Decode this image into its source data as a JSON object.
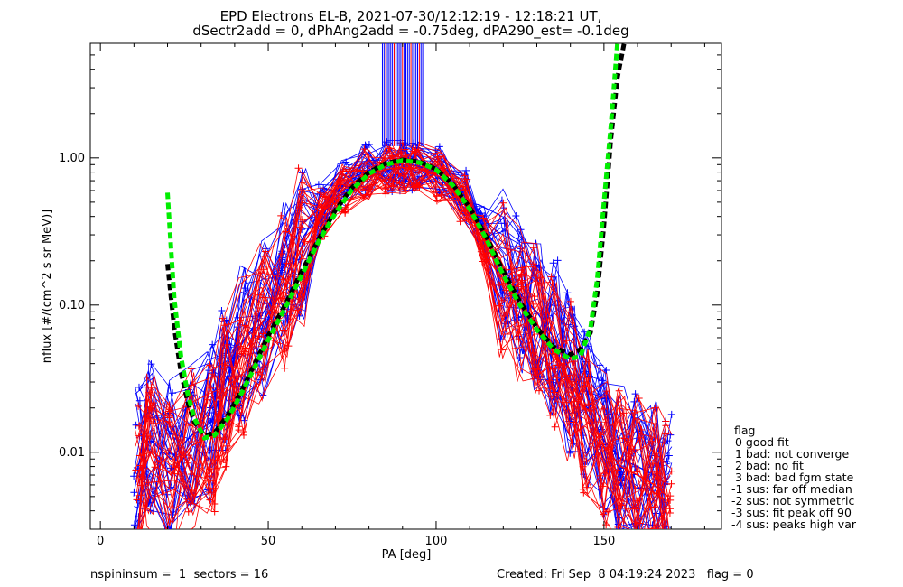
{
  "chart_data": {
    "type": "line",
    "title_line1": "EPD Electrons EL-B, 2021-07-30/12:12:19 - 12:18:21 UT,",
    "title_line2": "dSectr2add = 0, dPhAng2add = -0.75deg, dPA290_est=  -0.1deg",
    "xlabel": "PA [deg]",
    "ylabel": "nflux [#/(cm^2 s sr MeV)]",
    "xlim": [
      -3,
      185
    ],
    "ylim": [
      0.003,
      6.0
    ],
    "yscale": "log",
    "xticks": [
      0,
      50,
      100,
      150
    ],
    "xtick_labels": [
      "0",
      "50",
      "100",
      "150"
    ],
    "yticks": [
      0.01,
      0.1,
      1.0
    ],
    "ytick_labels": [
      "0.01",
      "0.10",
      "1.00"
    ],
    "grid": false,
    "colors": {
      "series_a": "#0000ff",
      "series_b": "#ff0000",
      "fit_green": "#00ee00",
      "fit_black": "#000000"
    },
    "series": [
      {
        "color": "#0000ff",
        "marker": "+",
        "points": [
          [
            11,
            0.008
          ],
          [
            15,
            0.012
          ],
          [
            21,
            0.009
          ],
          [
            27,
            0.013
          ],
          [
            33,
            0.016
          ],
          [
            37,
            0.03
          ],
          [
            42,
            0.055
          ],
          [
            48,
            0.085
          ],
          [
            55,
            0.15
          ],
          [
            60,
            0.28
          ],
          [
            66,
            0.45
          ],
          [
            72,
            0.65
          ],
          [
            79,
            0.82
          ],
          [
            86,
            0.88
          ],
          [
            90,
            0.9
          ],
          [
            94,
            0.89
          ],
          [
            101,
            0.8
          ],
          [
            108,
            0.55
          ],
          [
            114,
            0.32
          ],
          [
            120,
            0.18
          ],
          [
            125,
            0.12
          ],
          [
            130,
            0.09
          ],
          [
            135,
            0.06
          ],
          [
            140,
            0.035
          ],
          [
            145,
            0.02
          ],
          [
            150,
            0.012
          ],
          [
            155,
            0.009
          ],
          [
            160,
            0.008
          ],
          [
            165,
            0.007
          ],
          [
            169,
            0.006
          ]
        ]
      },
      {
        "color": "#ff0000",
        "marker": "+",
        "points": [
          [
            11,
            0.006
          ],
          [
            15,
            0.01
          ],
          [
            21,
            0.007
          ],
          [
            27,
            0.011
          ],
          [
            33,
            0.013
          ],
          [
            37,
            0.025
          ],
          [
            42,
            0.045
          ],
          [
            48,
            0.075
          ],
          [
            55,
            0.13
          ],
          [
            60,
            0.25
          ],
          [
            66,
            0.42
          ],
          [
            72,
            0.6
          ],
          [
            79,
            0.78
          ],
          [
            86,
            0.84
          ],
          [
            90,
            0.86
          ],
          [
            94,
            0.85
          ],
          [
            101,
            0.75
          ],
          [
            108,
            0.5
          ],
          [
            114,
            0.28
          ],
          [
            120,
            0.15
          ],
          [
            125,
            0.1
          ],
          [
            130,
            0.075
          ],
          [
            135,
            0.05
          ],
          [
            140,
            0.03
          ],
          [
            145,
            0.018
          ],
          [
            150,
            0.011
          ],
          [
            155,
            0.008
          ],
          [
            160,
            0.007
          ],
          [
            165,
            0.006
          ],
          [
            169,
            0.005
          ]
        ]
      }
    ],
    "fit_curves": [
      {
        "color": "#000000",
        "points": [
          [
            20,
            0.19
          ],
          [
            22,
            0.07
          ],
          [
            24,
            0.035
          ],
          [
            26,
            0.022
          ],
          [
            28,
            0.016
          ],
          [
            31,
            0.013
          ],
          [
            34,
            0.0135
          ],
          [
            38,
            0.018
          ],
          [
            42,
            0.026
          ],
          [
            46,
            0.04
          ],
          [
            50,
            0.062
          ],
          [
            55,
            0.1
          ],
          [
            60,
            0.17
          ],
          [
            65,
            0.28
          ],
          [
            70,
            0.44
          ],
          [
            75,
            0.63
          ],
          [
            80,
            0.8
          ],
          [
            85,
            0.92
          ],
          [
            90,
            0.97
          ],
          [
            95,
            0.94
          ],
          [
            100,
            0.84
          ],
          [
            105,
            0.66
          ],
          [
            110,
            0.46
          ],
          [
            115,
            0.29
          ],
          [
            120,
            0.17
          ],
          [
            125,
            0.105
          ],
          [
            130,
            0.07
          ],
          [
            135,
            0.052
          ],
          [
            140,
            0.046
          ],
          [
            143,
            0.05
          ],
          [
            146,
            0.065
          ],
          [
            148,
            0.12
          ],
          [
            150,
            0.35
          ],
          [
            152,
            1.3
          ],
          [
            154,
            3.5
          ],
          [
            156,
            6.0
          ]
        ]
      },
      {
        "color": "#00ee00",
        "points": [
          [
            20,
            0.58
          ],
          [
            22,
            0.11
          ],
          [
            24,
            0.045
          ],
          [
            26,
            0.025
          ],
          [
            28,
            0.017
          ],
          [
            31,
            0.0125
          ],
          [
            34,
            0.013
          ],
          [
            38,
            0.017
          ],
          [
            42,
            0.025
          ],
          [
            46,
            0.038
          ],
          [
            50,
            0.058
          ],
          [
            55,
            0.095
          ],
          [
            60,
            0.16
          ],
          [
            65,
            0.27
          ],
          [
            70,
            0.42
          ],
          [
            75,
            0.61
          ],
          [
            80,
            0.78
          ],
          [
            85,
            0.9
          ],
          [
            90,
            0.96
          ],
          [
            95,
            0.93
          ],
          [
            100,
            0.83
          ],
          [
            105,
            0.65
          ],
          [
            110,
            0.45
          ],
          [
            115,
            0.28
          ],
          [
            120,
            0.16
          ],
          [
            125,
            0.1
          ],
          [
            130,
            0.068
          ],
          [
            135,
            0.05
          ],
          [
            140,
            0.043
          ],
          [
            143,
            0.045
          ],
          [
            146,
            0.07
          ],
          [
            148,
            0.15
          ],
          [
            150,
            0.5
          ],
          [
            152,
            1.6
          ],
          [
            154,
            6.0
          ]
        ]
      }
    ],
    "legend": {
      "position": "bottom-right",
      "title": "flag",
      "entries": [
        " 0 good fit",
        " 1 bad: not converge",
        " 2 bad: no fit",
        " 3 bad: bad fgm state",
        "-1 sus: far off median",
        "-2 sus: not symmetric",
        "-3 sus: fit peak off 90",
        "-4 sus: peaks high var"
      ]
    }
  },
  "footer": {
    "left": "nspininsum =  1  sectors = 16",
    "right": "Created: Fri Sep  8 04:19:24 2023   flag = 0"
  }
}
